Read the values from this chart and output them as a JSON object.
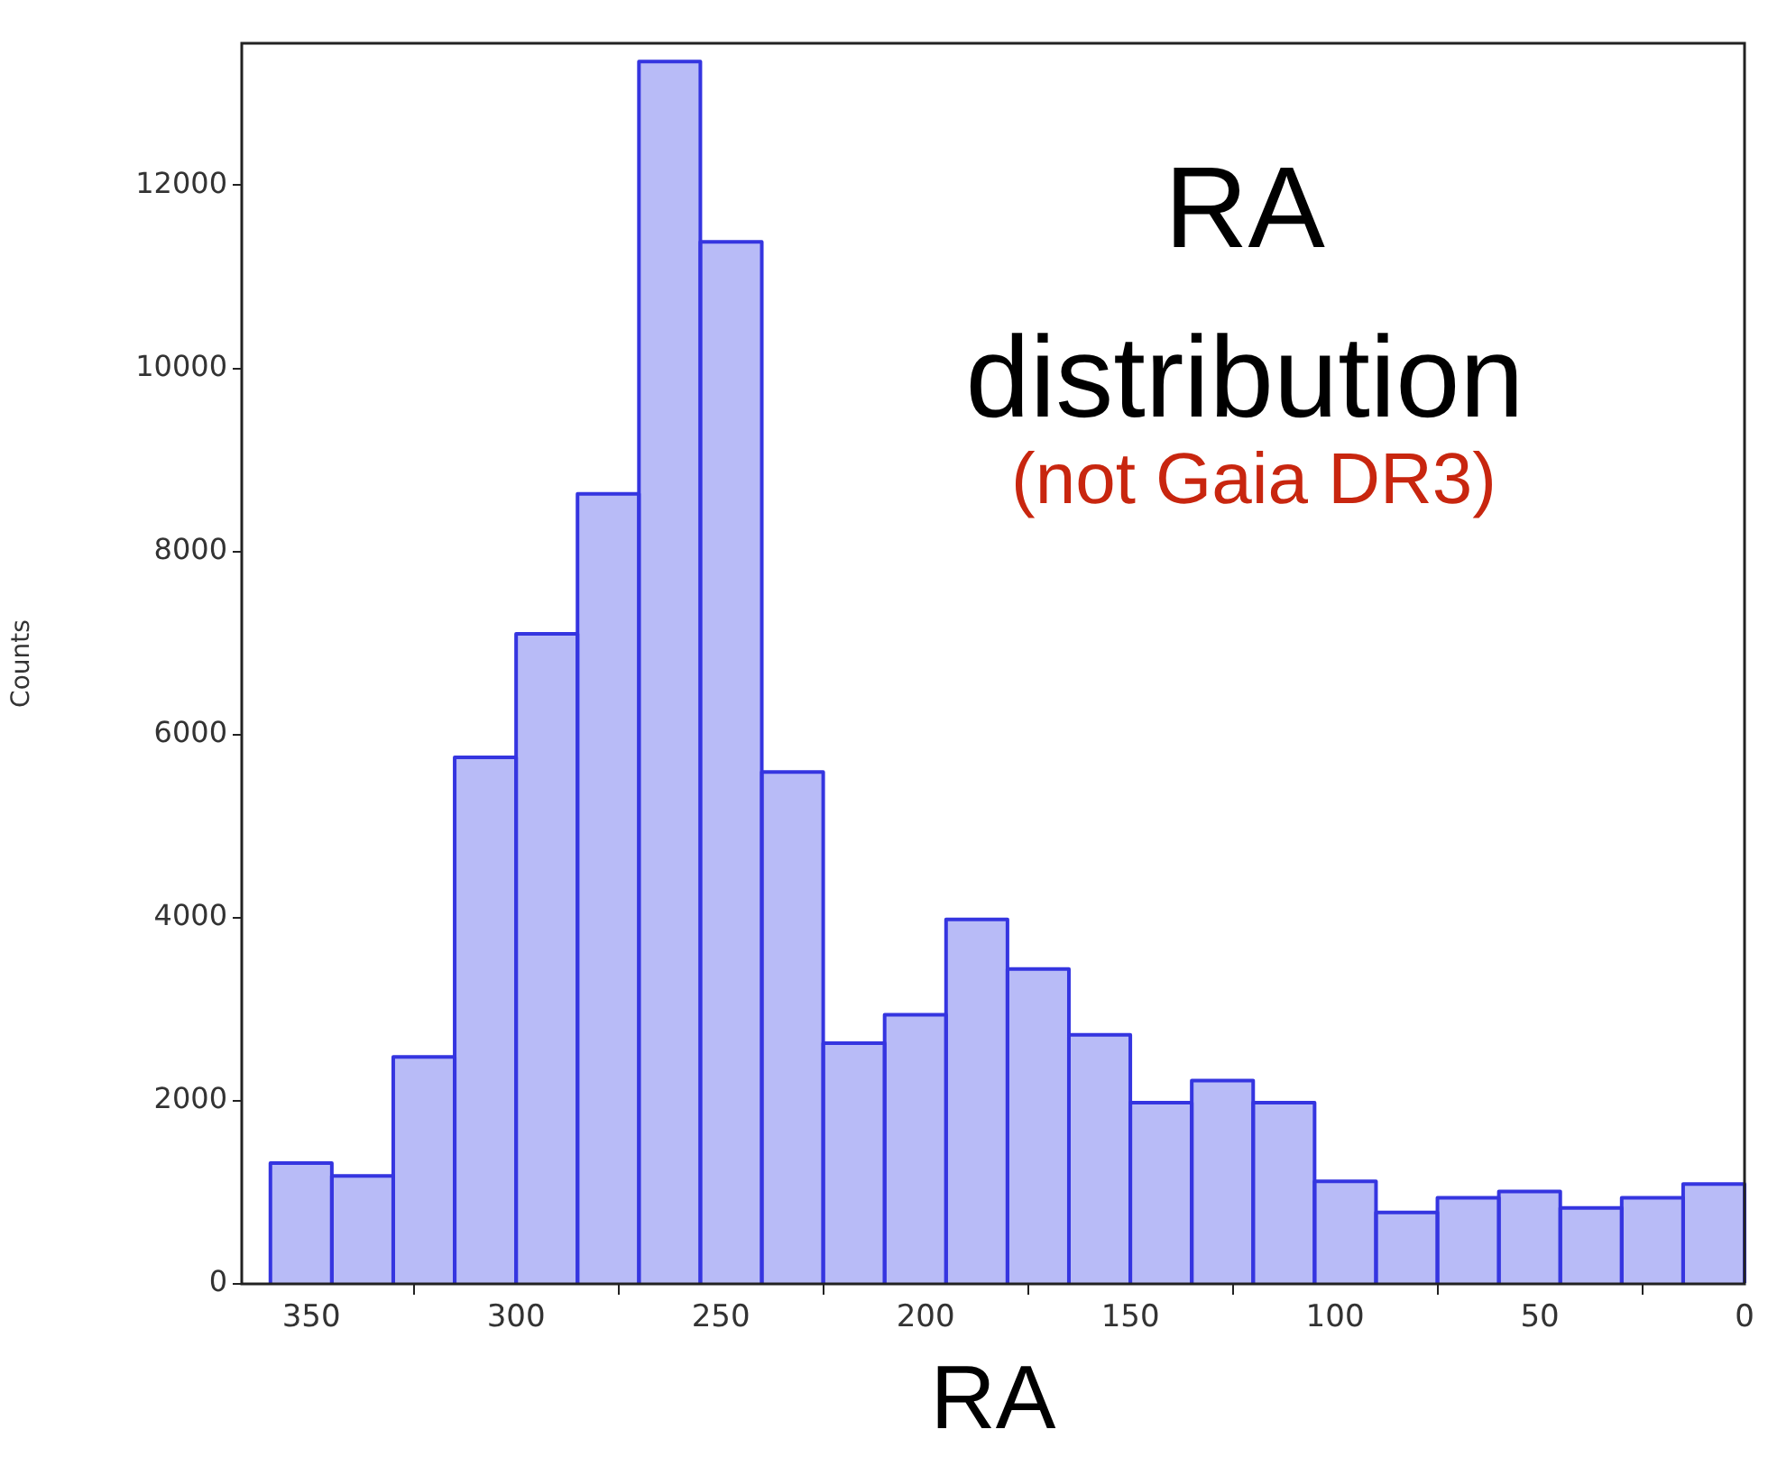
{
  "chart_data": {
    "type": "histogram",
    "title": "RA distribution",
    "xlabel": "RA",
    "ylabel": "Counts",
    "annotations": [
      "(not Gaia DR3)"
    ],
    "bins": [
      360,
      345,
      330,
      315,
      300,
      285,
      270,
      255,
      240,
      225,
      210,
      195,
      180,
      165,
      150,
      135,
      120,
      105,
      90,
      75,
      60,
      45,
      30,
      15,
      0
    ],
    "values": [
      1320,
      1180,
      2480,
      5750,
      7100,
      8630,
      13350,
      11380,
      5590,
      2630,
      2940,
      3980,
      3440,
      2720,
      1980,
      2220,
      1980,
      1120,
      780,
      940,
      1010,
      830,
      940,
      1090
    ],
    "color": "#b8bbf7",
    "xlim": [
      367,
      0
    ],
    "xticks": [
      350,
      300,
      250,
      200,
      150,
      100,
      50,
      0
    ],
    "ylim": [
      0,
      13550
    ],
    "yticks": [
      0,
      2000,
      4000,
      6000,
      8000,
      10000,
      12000
    ],
    "grid": false,
    "legend": false
  }
}
